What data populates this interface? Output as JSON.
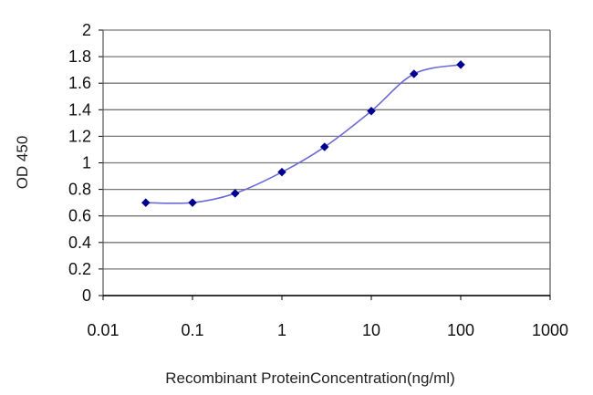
{
  "chart_data": {
    "type": "line",
    "title": "",
    "xlabel": "Recombinant ProteinConcentration(ng/ml)",
    "ylabel": "OD 450",
    "xscale": "log",
    "xlim": [
      0.01,
      1000
    ],
    "ylim": [
      0,
      2
    ],
    "xticks": [
      0.01,
      0.1,
      1,
      10,
      100,
      1000
    ],
    "xtick_labels": [
      "0.01",
      "0.1",
      "1",
      "10",
      "100",
      "1000"
    ],
    "yticks": [
      0,
      0.2,
      0.4,
      0.6,
      0.8,
      1,
      1.2,
      1.4,
      1.6,
      1.8,
      2
    ],
    "ytick_labels": [
      "0",
      "0.2",
      "0.4",
      "0.6",
      "0.8",
      "1",
      "1.2",
      "1.4",
      "1.6",
      "1.8",
      "2"
    ],
    "grid": "horizontal",
    "legend": "none",
    "series": [
      {
        "x": [
          0.03,
          0.1,
          0.3,
          1,
          3,
          10,
          30,
          100
        ],
        "y": [
          0.7,
          0.7,
          0.77,
          0.93,
          1.12,
          1.39,
          1.67,
          1.74
        ]
      }
    ],
    "colors": {
      "series_line": "#6b6bd8",
      "marker": "#000090",
      "grid": "#777777",
      "axis": "#000000"
    }
  }
}
